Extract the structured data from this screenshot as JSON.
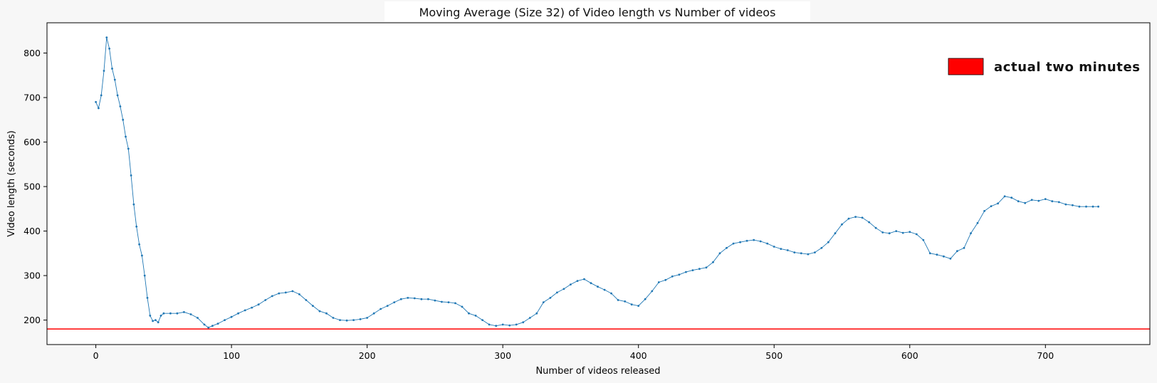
{
  "chart_data": {
    "type": "line",
    "title": "Moving Average (Size 32) of Video length vs Number of videos",
    "xlabel": "Number of videos released",
    "ylabel": "Video length (seconds)",
    "xlim": [
      -36,
      777
    ],
    "ylim": [
      145,
      868
    ],
    "xticks": [
      0,
      100,
      200,
      300,
      400,
      500,
      600,
      700
    ],
    "yticks": [
      200,
      300,
      400,
      500,
      600,
      700,
      800
    ],
    "grid": false,
    "legend": {
      "placement": "top-right",
      "entries": [
        {
          "label": "actual two minutes",
          "color": "#ff0000"
        }
      ]
    },
    "reference_line": {
      "y": 180,
      "color": "#ff0000",
      "label": "actual two minutes"
    },
    "series": [
      {
        "color": "#1f77b4",
        "x": [
          0,
          2,
          4,
          6,
          8,
          10,
          12,
          14,
          16,
          18,
          20,
          22,
          24,
          26,
          28,
          30,
          32,
          34,
          36,
          38,
          40,
          42,
          44,
          46,
          48,
          50,
          55,
          60,
          65,
          70,
          75,
          80,
          83,
          86,
          90,
          95,
          100,
          105,
          110,
          115,
          120,
          125,
          130,
          135,
          140,
          145,
          150,
          155,
          160,
          165,
          170,
          175,
          180,
          185,
          190,
          195,
          200,
          205,
          210,
          215,
          220,
          225,
          230,
          235,
          240,
          245,
          250,
          255,
          260,
          265,
          270,
          275,
          280,
          285,
          290,
          295,
          300,
          305,
          310,
          315,
          320,
          325,
          330,
          335,
          340,
          345,
          350,
          355,
          360,
          365,
          370,
          375,
          380,
          385,
          390,
          395,
          400,
          405,
          410,
          415,
          420,
          425,
          430,
          435,
          440,
          445,
          450,
          455,
          460,
          465,
          470,
          475,
          480,
          485,
          490,
          495,
          500,
          505,
          510,
          515,
          520,
          525,
          530,
          535,
          540,
          545,
          550,
          555,
          560,
          565,
          570,
          575,
          580,
          585,
          590,
          595,
          600,
          605,
          610,
          615,
          620,
          625,
          630,
          635,
          640,
          645,
          650,
          655,
          660,
          665,
          670,
          675,
          680,
          685,
          690,
          695,
          700,
          705,
          710,
          715,
          720,
          725,
          730,
          735,
          739
        ],
        "y": [
          690,
          676,
          705,
          760,
          835,
          810,
          765,
          740,
          705,
          680,
          650,
          612,
          585,
          525,
          460,
          410,
          370,
          345,
          300,
          250,
          210,
          198,
          200,
          195,
          210,
          215,
          215,
          215,
          218,
          213,
          205,
          190,
          183,
          187,
          192,
          200,
          207,
          215,
          222,
          228,
          235,
          245,
          254,
          260,
          262,
          265,
          258,
          245,
          232,
          220,
          215,
          205,
          200,
          199,
          200,
          202,
          205,
          215,
          225,
          232,
          240,
          247,
          250,
          249,
          247,
          247,
          244,
          241,
          240,
          238,
          230,
          215,
          210,
          200,
          190,
          187,
          190,
          188,
          190,
          195,
          205,
          215,
          240,
          250,
          262,
          270,
          280,
          288,
          292,
          283,
          275,
          268,
          260,
          245,
          242,
          235,
          232,
          247,
          265,
          285,
          290,
          298,
          302,
          308,
          312,
          315,
          318,
          330,
          350,
          362,
          372,
          375,
          378,
          380,
          377,
          372,
          365,
          360,
          357,
          352,
          350,
          348,
          352,
          362,
          375,
          395,
          415,
          428,
          432,
          430,
          420,
          407,
          397,
          395,
          400,
          396,
          398,
          393,
          380,
          350,
          347,
          343,
          338,
          355,
          362,
          395,
          418,
          445,
          456,
          462,
          478,
          475,
          467,
          463,
          470,
          468,
          472,
          467,
          465,
          460,
          458,
          455,
          455,
          455,
          455
        ]
      }
    ]
  }
}
